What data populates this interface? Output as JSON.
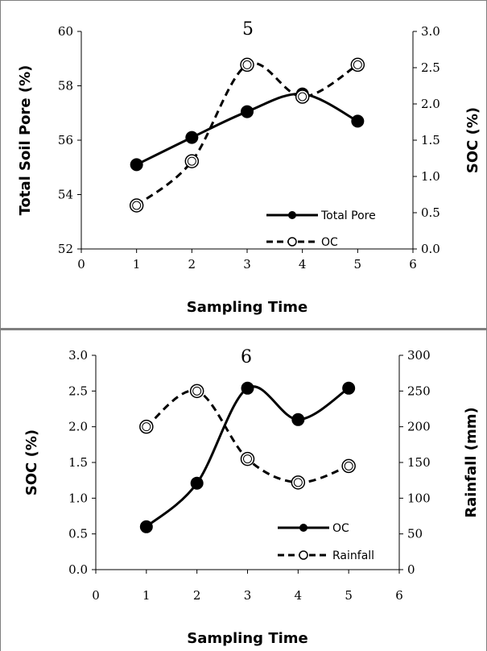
{
  "chart_data": [
    {
      "type": "line",
      "title": "5",
      "xlabel": "Sampling Time",
      "ylabel": "Total Soil Pore (%)",
      "y2label": "SOC (%)",
      "xlim": [
        0,
        6
      ],
      "ylim": [
        52,
        60
      ],
      "y2lim": [
        0.0,
        3.0
      ],
      "xticks": [
        "0",
        "1",
        "2",
        "3",
        "4",
        "5",
        "6"
      ],
      "yticks": [
        "52",
        "54",
        "56",
        "58",
        "60"
      ],
      "y2ticks": [
        "0.0",
        "0.5",
        "1.0",
        "1.5",
        "2.0",
        "2.5",
        "3.0"
      ],
      "legend_position": "bottom-right",
      "grid": false,
      "series": [
        {
          "name": "Total Pore",
          "axis": "left",
          "style": "solid",
          "marker": "filled-circle",
          "x": [
            1,
            2,
            3,
            4,
            5
          ],
          "values": [
            55.1,
            56.1,
            57.05,
            57.7,
            56.7
          ]
        },
        {
          "name": "OC",
          "axis": "right",
          "style": "dashed",
          "marker": "open-circle",
          "x": [
            1,
            2,
            3,
            4,
            5
          ],
          "values": [
            0.6,
            1.21,
            2.54,
            2.1,
            2.54
          ]
        }
      ]
    },
    {
      "type": "line",
      "title": "6",
      "xlabel": "Sampling Time",
      "ylabel": "SOC (%)",
      "y2label": "Rainfall (mm)",
      "xlim": [
        0,
        6
      ],
      "ylim": [
        0.0,
        3.0
      ],
      "y2lim": [
        0,
        300
      ],
      "xticks": [
        "0",
        "1",
        "2",
        "3",
        "4",
        "5",
        "6"
      ],
      "yticks": [
        "0.0",
        "0.5",
        "1.0",
        "1.5",
        "2.0",
        "2.5",
        "3.0"
      ],
      "y2ticks": [
        "0",
        "50",
        "100",
        "150",
        "200",
        "250",
        "300"
      ],
      "legend_position": "bottom-right",
      "grid": false,
      "series": [
        {
          "name": "OC",
          "axis": "left",
          "style": "solid",
          "marker": "filled-circle",
          "x": [
            1,
            2,
            3,
            4,
            5
          ],
          "values": [
            0.6,
            1.21,
            2.54,
            2.1,
            2.54
          ]
        },
        {
          "name": "Rainfall",
          "axis": "right",
          "style": "dashed",
          "marker": "open-circle",
          "x": [
            1,
            2,
            3,
            4,
            5
          ],
          "values": [
            200,
            250,
            155,
            122,
            145
          ]
        }
      ]
    }
  ]
}
